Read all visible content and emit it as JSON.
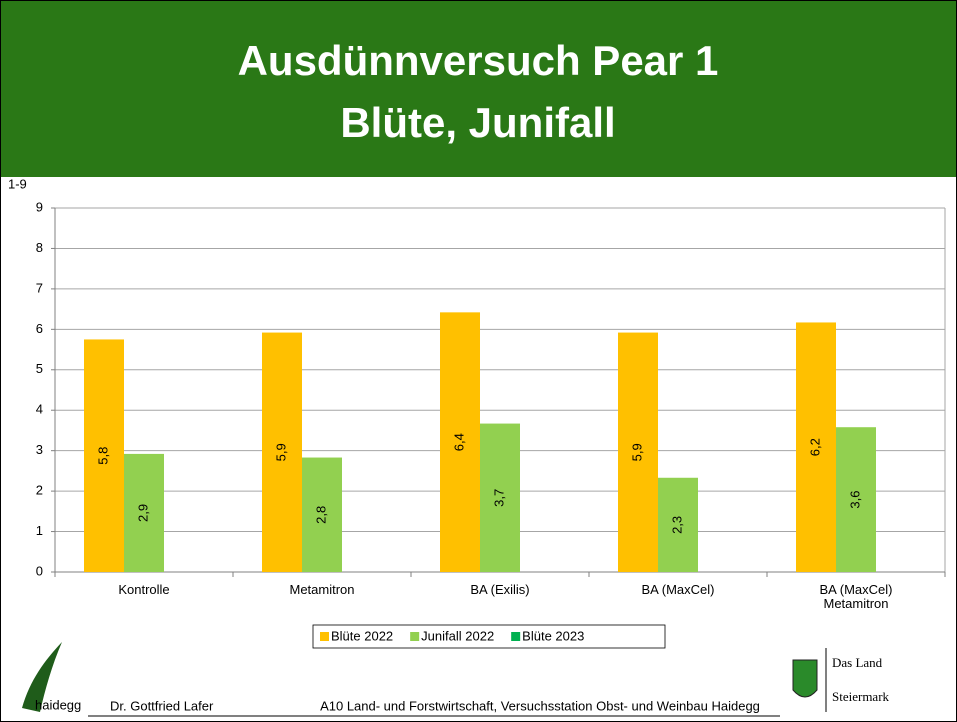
{
  "slide": {
    "title_lines": [
      "Ausdünnversuch Pear 1",
      "Blüte, Junifall"
    ]
  },
  "chart_data": {
    "type": "bar",
    "y_label": "1-9",
    "categories": [
      "Kontrolle",
      "Metamitron",
      "BA (Exilis)",
      "BA (MaxCel)",
      "BA (MaxCel)\nMetamitron"
    ],
    "series": [
      {
        "name": "Blüte 2022",
        "color": "#ffc000",
        "values": [
          5.75,
          5.92,
          6.42,
          5.92,
          6.17
        ],
        "value_labels": [
          "5,8",
          "5,9",
          "6,4",
          "5,9",
          "6,2"
        ]
      },
      {
        "name": "Junifall 2022",
        "color": "#92d050",
        "values": [
          2.92,
          2.83,
          3.67,
          2.33,
          3.58
        ],
        "value_labels": [
          "2,9",
          "2,8",
          "3,7",
          "2,3",
          "3,6"
        ]
      },
      {
        "name": "Blüte 2023",
        "color": "#00b050",
        "values": [
          null,
          null,
          null,
          null,
          null
        ]
      }
    ],
    "ylim": [
      0,
      9
    ],
    "yticks": [
      0,
      1,
      2,
      3,
      4,
      5,
      6,
      7,
      8,
      9
    ],
    "grid": true,
    "legend": "bottom"
  },
  "footer": {
    "logo": "haidegg",
    "author": "Dr. Gottfried Lafer",
    "institute": "A10 Land- und Forstwirtschaft, Versuchsstation Obst- und Weinbau Haidegg",
    "brand_lines": [
      "Das Land",
      "Steiermark"
    ]
  }
}
